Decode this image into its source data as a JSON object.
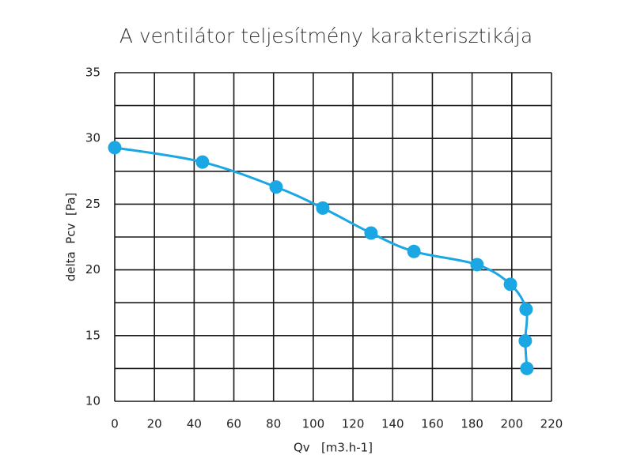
{
  "chart_data": {
    "type": "line",
    "title": "A ventilátor teljesítmény karakterisztikája",
    "x_label": "Qv   [m3.h-1]",
    "y_label": "delta  Pcv  [Pa]",
    "xlim": [
      0,
      220
    ],
    "ylim": [
      10,
      35
    ],
    "xticks": [
      0,
      20,
      40,
      60,
      80,
      100,
      120,
      140,
      160,
      180,
      200,
      220
    ],
    "yticks": [
      10,
      15,
      20,
      25,
      30,
      35
    ],
    "y_minor_ticks": [
      12.5,
      17.5,
      22.5,
      27.5,
      32.5
    ],
    "grid": true,
    "series": [
      {
        "color": "#1ba7e3",
        "x": [
          0,
          44.2,
          81.3,
          104.8,
          129.1,
          150.7,
          182.5,
          199.3,
          207.2,
          206.8,
          207.6
        ],
        "values": [
          29.3,
          28.2,
          26.3,
          24.7,
          22.8,
          21.4,
          20.4,
          18.9,
          17.0,
          14.6,
          12.5
        ]
      }
    ]
  }
}
